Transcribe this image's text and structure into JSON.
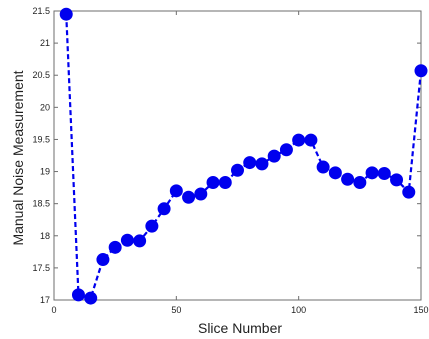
{
  "chart_data": {
    "type": "line",
    "title": "",
    "xlabel": "Slice Number",
    "ylabel": "Manual Noise Measurement",
    "xlim": [
      0,
      150
    ],
    "ylim": [
      17,
      21.5
    ],
    "x_ticks": [
      0,
      50,
      100,
      150
    ],
    "y_ticks": [
      17,
      17.5,
      18,
      18.5,
      19,
      19.5,
      20,
      20.5,
      21,
      21.5
    ],
    "grid": false,
    "line_style": "dashed",
    "marker": "circle",
    "color": "#0000ee",
    "series": [
      {
        "x": [
          5,
          10,
          15,
          20,
          25,
          30,
          35,
          40,
          45,
          50,
          55,
          60,
          65,
          70,
          75,
          80,
          85,
          90,
          95,
          100,
          105,
          110,
          115,
          120,
          125,
          130,
          135,
          140,
          145,
          150
        ],
        "values": [
          21.45,
          17.08,
          17.03,
          17.63,
          17.82,
          17.93,
          17.92,
          18.15,
          18.42,
          18.7,
          18.6,
          18.65,
          18.83,
          18.83,
          19.02,
          19.14,
          19.12,
          19.24,
          19.34,
          19.49,
          19.49,
          19.07,
          18.98,
          18.88,
          18.83,
          18.98,
          18.97,
          18.87,
          18.68,
          20.57
        ]
      }
    ]
  }
}
